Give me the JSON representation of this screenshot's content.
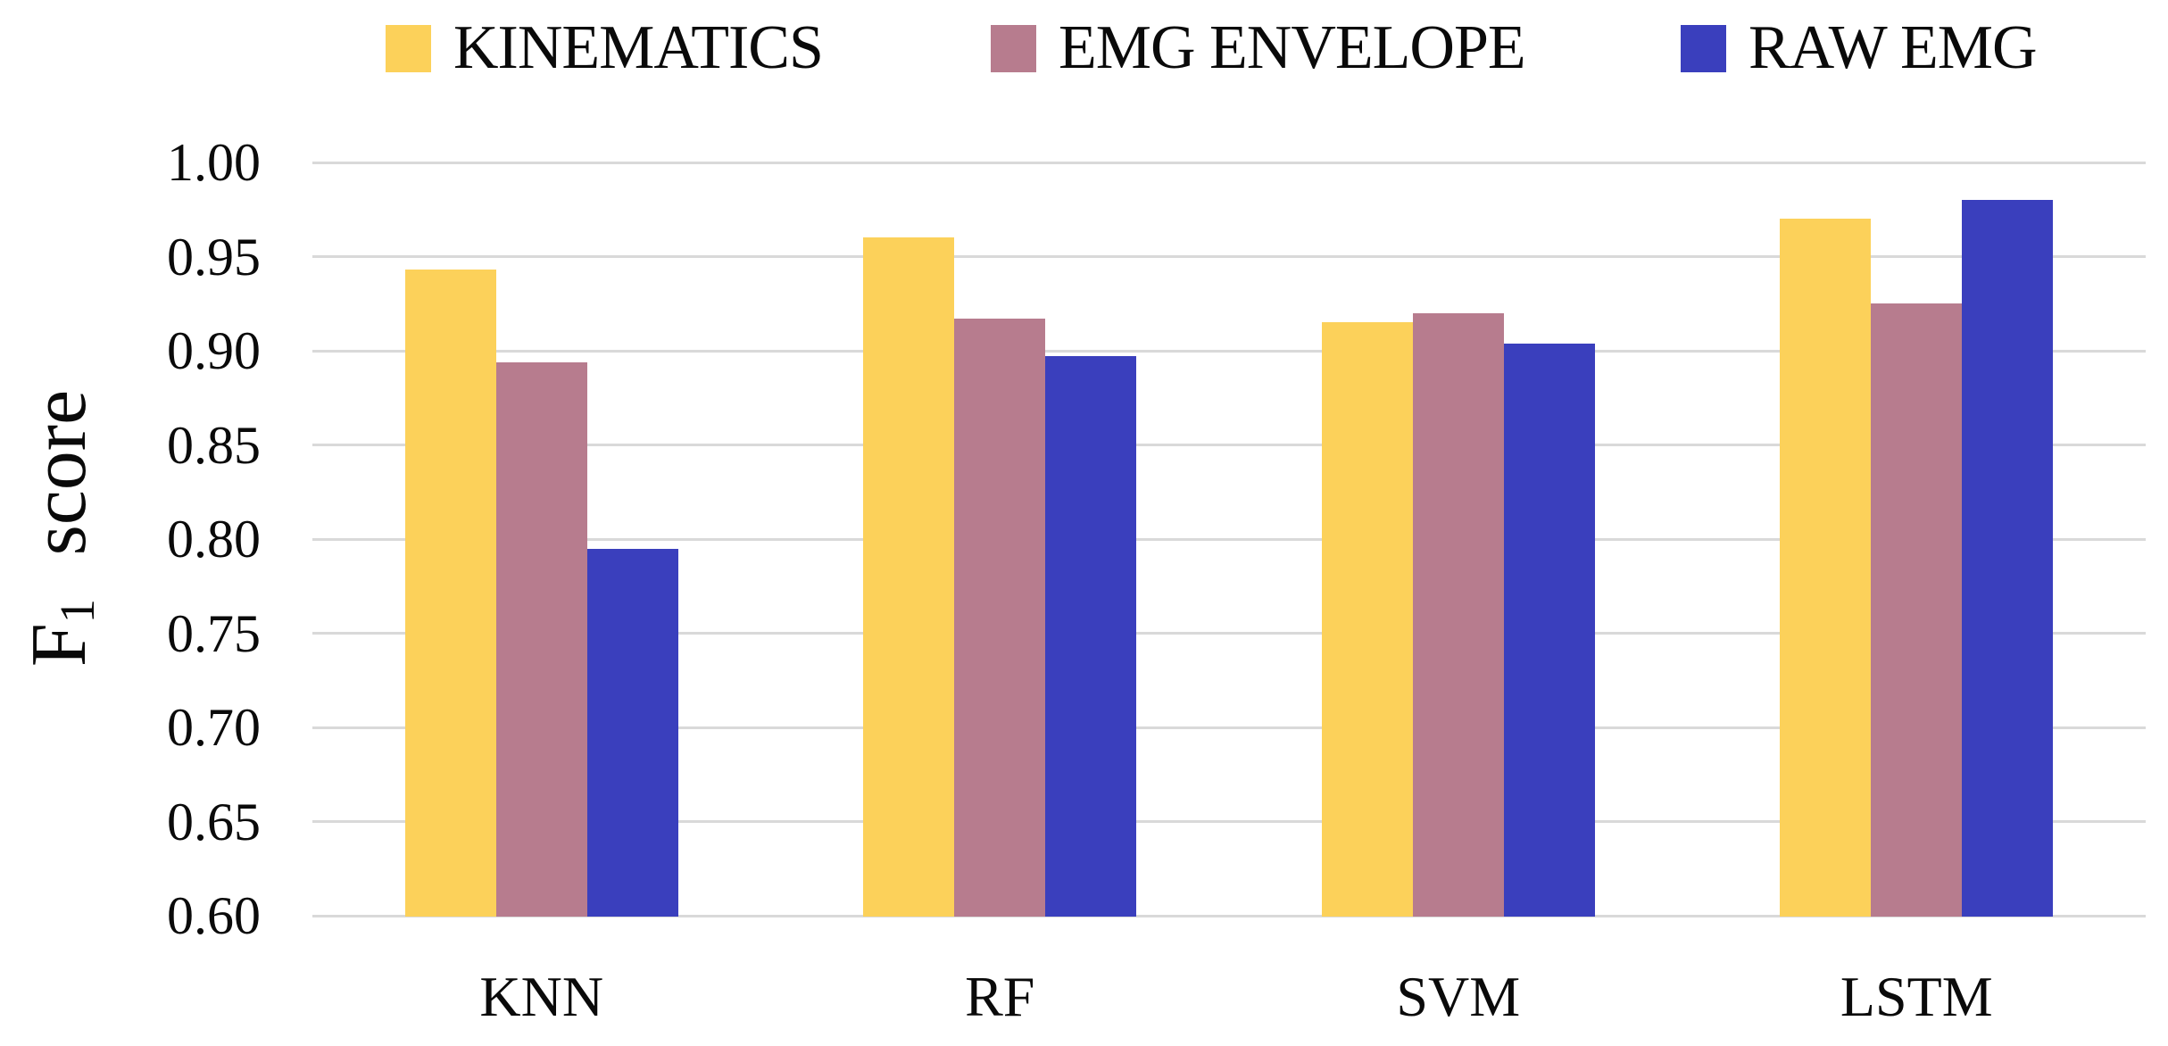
{
  "figure_background": "#ffffff",
  "text_color": "#0a0a0a",
  "gridline_color": "#d9d9d9",
  "chart_data": {
    "type": "bar",
    "title": "",
    "xlabel": "",
    "ylabel": "F1 score",
    "ylabel_parts": {
      "base": "F",
      "sub": "1",
      "rest": "score"
    },
    "categories": [
      "KNN",
      "RF",
      "SVM",
      "LSTM"
    ],
    "series": [
      {
        "name": "KINEMATICS",
        "color": "#FCD15A",
        "values": [
          0.943,
          0.96,
          0.915,
          0.97
        ]
      },
      {
        "name": "EMG ENVELOPE",
        "color": "#B77C8E",
        "values": [
          0.894,
          0.917,
          0.92,
          0.925
        ]
      },
      {
        "name": "RAW EMG",
        "color": "#3A3FBD",
        "values": [
          0.795,
          0.897,
          0.904,
          0.98
        ]
      }
    ],
    "ylim": [
      0.6,
      1.0
    ],
    "ytick_labels": [
      "1.00",
      "0.95",
      "0.90",
      "0.85",
      "0.80",
      "0.75",
      "0.70",
      "0.65",
      "0.60"
    ],
    "grid": true,
    "legend_position": "top"
  }
}
